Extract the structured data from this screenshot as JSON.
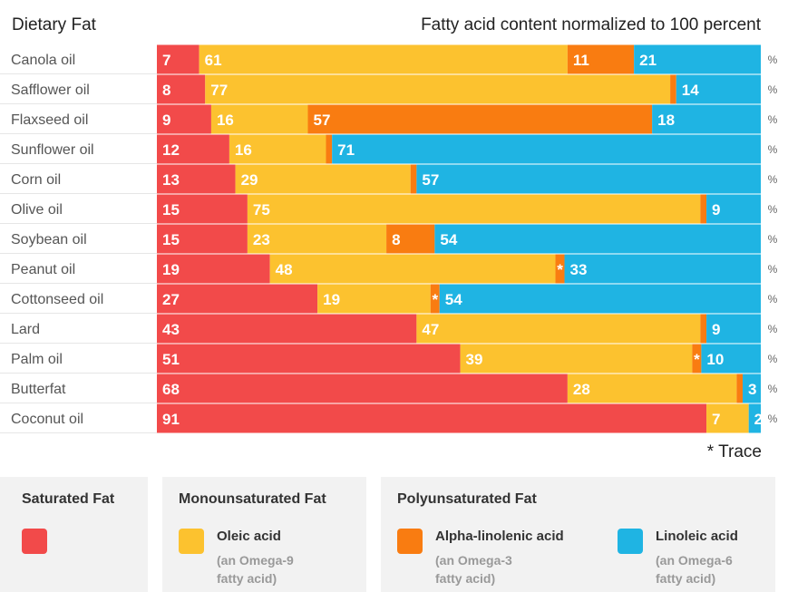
{
  "headers": {
    "left": "Dietary Fat",
    "right": "Fatty acid content normalized to 100 percent"
  },
  "colors": {
    "saturated": "#f24a4a",
    "oleic": "#fcc22f",
    "alpha_linolenic": "#f97c11",
    "linoleic": "#1fb4e3"
  },
  "chart_data": {
    "type": "bar",
    "stacked": true,
    "orientation": "horizontal",
    "categories": [
      "Canola oil",
      "Safflower oil",
      "Flaxseed oil",
      "Sunflower oil",
      "Corn oil",
      "Olive oil",
      "Soybean oil",
      "Peanut oil",
      "Cottonseed oil",
      "Lard",
      "Palm oil",
      "Butterfat",
      "Coconut oil"
    ],
    "series": [
      {
        "name": "Saturated Fat",
        "values": [
          7,
          8,
          9,
          12,
          13,
          15,
          15,
          19,
          27,
          43,
          51,
          68,
          91
        ]
      },
      {
        "name": "Oleic acid",
        "values": [
          61,
          77,
          16,
          16,
          29,
          75,
          23,
          48,
          19,
          47,
          39,
          28,
          7
        ]
      },
      {
        "name": "Alpha-linolenic acid",
        "values": [
          11,
          1,
          57,
          1,
          1,
          1,
          8,
          "*",
          "*",
          1,
          "*",
          1,
          0
        ]
      },
      {
        "name": "Linoleic acid",
        "values": [
          21,
          14,
          18,
          71,
          57,
          9,
          54,
          33,
          54,
          9,
          10,
          3,
          2
        ]
      }
    ],
    "trace_symbol": "*",
    "unit": "%",
    "xlim": [
      0,
      100
    ]
  },
  "footnote": "* Trace",
  "legend": {
    "saturated": {
      "title": "Saturated Fat"
    },
    "mono": {
      "title": "Monounsaturated Fat",
      "oleic": {
        "name": "Oleic acid",
        "sub1": "(an Omega-9",
        "sub2": "fatty acid)"
      }
    },
    "poly": {
      "title": "Polyunsaturated Fat",
      "ala": {
        "name": "Alpha-linolenic acid",
        "sub1": "(an Omega-3",
        "sub2": "fatty acid)"
      },
      "la": {
        "name": "Linoleic acid",
        "sub1": "(an Omega-6",
        "sub2": "fatty acid)"
      }
    }
  }
}
